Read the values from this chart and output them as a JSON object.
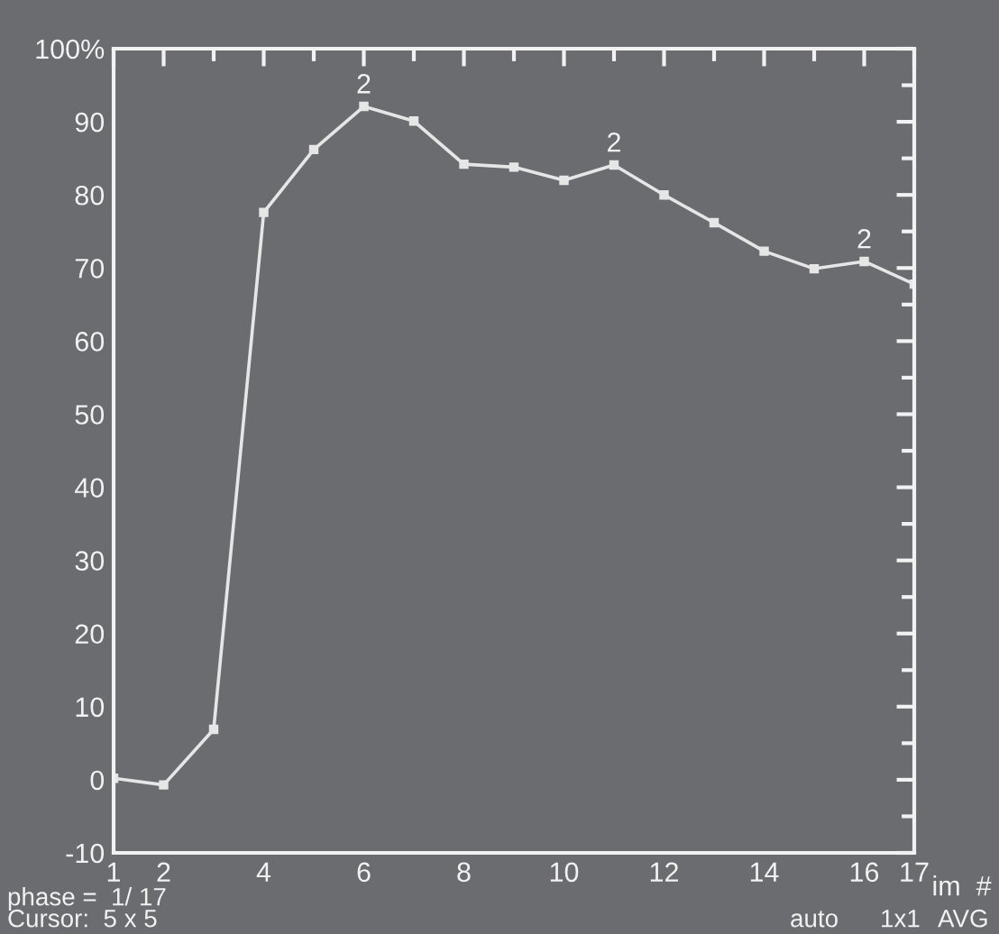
{
  "chart_data": {
    "type": "line",
    "xlabel": "im  #",
    "x": [
      1,
      2,
      3,
      4,
      5,
      6,
      7,
      8,
      9,
      10,
      11,
      12,
      13,
      14,
      15,
      16,
      17
    ],
    "series": [
      {
        "color": "#e6e6e6",
        "values": [
          0.2,
          -0.7,
          6.9,
          77.6,
          86.2,
          92.1,
          90.1,
          84.2,
          83.8,
          82.0,
          84.1,
          80.0,
          76.2,
          72.3,
          69.9,
          70.9,
          67.8
        ]
      }
    ],
    "marker": "square",
    "line_style": "solid",
    "grid": false,
    "xlim": [
      1,
      17
    ],
    "xticks": [
      1,
      2,
      {
        "value": 3,
        "label": null
      },
      4,
      {
        "value": 5,
        "label": null
      },
      6,
      {
        "value": 7,
        "label": null
      },
      8,
      {
        "value": 9,
        "label": null
      },
      10,
      {
        "value": 11,
        "label": null
      },
      12,
      {
        "value": 13,
        "label": null
      },
      14,
      {
        "value": 15,
        "label": null
      },
      16,
      17
    ],
    "ylim": [
      -10,
      100
    ],
    "yticks": [
      -10,
      {
        "value": -5,
        "label": null
      },
      0,
      {
        "value": 5,
        "label": null
      },
      10,
      {
        "value": 15,
        "label": null
      },
      20,
      {
        "value": 25,
        "label": null
      },
      30,
      {
        "value": 35,
        "label": null
      },
      40,
      {
        "value": 45,
        "label": null
      },
      50,
      {
        "value": 55,
        "label": null
      },
      60,
      {
        "value": 65,
        "label": null
      },
      70,
      {
        "value": 75,
        "label": null
      },
      80,
      {
        "value": 85,
        "label": null
      },
      90,
      {
        "value": 95,
        "label": null
      },
      {
        "value": 100,
        "label": "100%"
      }
    ],
    "annotations": [
      {
        "text": "2",
        "x": 6,
        "y": 92.1
      },
      {
        "text": "2",
        "x": 11,
        "y": 84.1
      },
      {
        "text": "2",
        "x": 16,
        "y": 70.9
      },
      "phase =  1/ 17",
      "Cursor:  5 x 5",
      "auto",
      "1x1",
      "AVG"
    ]
  }
}
